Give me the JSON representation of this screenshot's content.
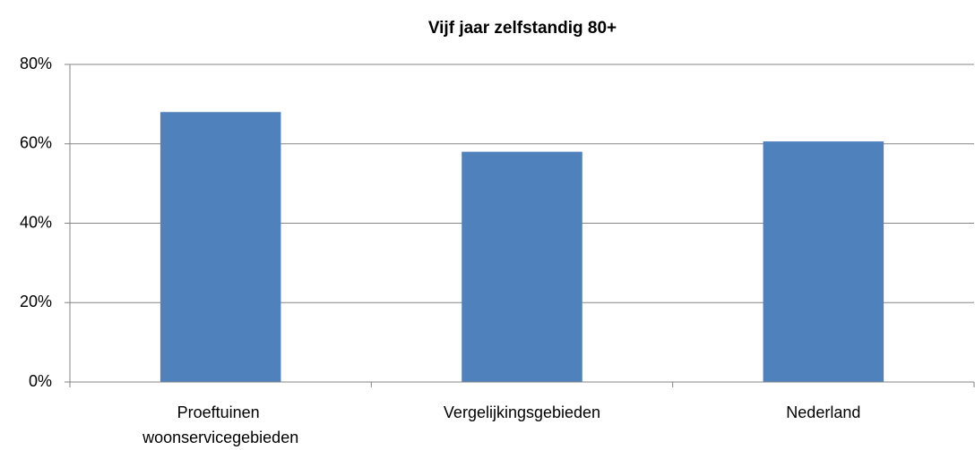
{
  "chart_data": {
    "type": "bar",
    "title": "Vijf jaar zelfstandig 80+",
    "categories": [
      "Proeftuinen woonservicegebieden",
      "Vergelijkingsgebieden",
      "Nederland"
    ],
    "values": [
      68,
      58,
      60.6
    ],
    "color": "#4f81bd",
    "ylim": [
      0,
      80
    ],
    "yticks": [
      {
        "value": 0,
        "label": "0%"
      },
      {
        "value": 20,
        "label": "20%"
      },
      {
        "value": 40,
        "label": "40%"
      },
      {
        "value": 60,
        "label": "60%"
      },
      {
        "value": 80,
        "label": "80%"
      }
    ],
    "grid": true
  }
}
